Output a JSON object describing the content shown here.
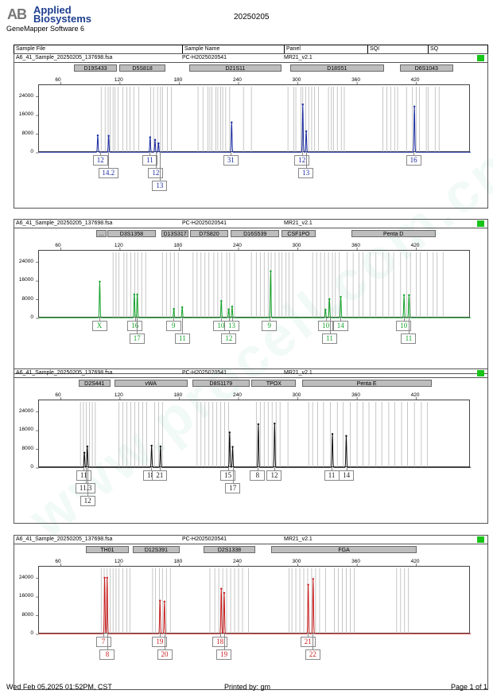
{
  "header": {
    "brand_line1": "Applied",
    "brand_line2": "Biosystems",
    "logo_text": "AB",
    "software": "GeneMapper Software 6",
    "run_date": "20250205"
  },
  "columns": [
    "Sample File",
    "Sample Name",
    "Panel",
    "SQI",
    "SQ"
  ],
  "panels": [
    {
      "file": "A6_41_Sample_20250205_137698.fsa",
      "name": "PC-H2025020541",
      "panel": "MR21_v2.1",
      "color": "#1a2aa0",
      "xticks": [
        60,
        120,
        180,
        240,
        300,
        360,
        420
      ],
      "yticks": [
        0,
        8000,
        16000,
        24000
      ],
      "markers": [
        {
          "label": "D19S433",
          "from": 74,
          "to": 118
        },
        {
          "label": "D5S818",
          "from": 120,
          "to": 167
        },
        {
          "label": "D21S11",
          "from": 191,
          "to": 284
        },
        {
          "label": "D18S51",
          "from": 293,
          "to": 388
        },
        {
          "label": "D6S1043",
          "from": 404,
          "to": 458
        }
      ],
      "ladder": [
        101,
        105,
        108,
        110,
        113,
        115,
        118,
        123,
        127,
        130,
        134,
        139,
        151,
        154,
        158,
        161,
        163,
        168,
        172,
        199,
        204,
        209,
        211,
        213,
        217,
        219,
        222,
        224,
        227,
        231,
        245,
        253,
        290,
        296,
        298,
        303,
        305,
        308,
        311,
        314,
        317,
        321,
        331,
        334,
        336,
        340,
        344,
        347,
        386,
        390,
        394,
        398,
        401,
        410,
        416,
        420,
        423,
        430,
        432,
        439,
        443
      ],
      "peaks": [
        {
          "x": 97.5,
          "h": 7200
        },
        {
          "x": 108.5,
          "h": 7000
        },
        {
          "x": 150.5,
          "h": 6400
        },
        {
          "x": 155.5,
          "h": 5300
        },
        {
          "x": 159,
          "h": 3800
        },
        {
          "x": 233,
          "h": 12800
        },
        {
          "x": 305,
          "h": 20500
        },
        {
          "x": 308.5,
          "h": 9000
        },
        {
          "x": 418,
          "h": 19600
        }
      ],
      "alleles": [
        {
          "label": "12",
          "x": 101,
          "row": 0
        },
        {
          "label": "14.2",
          "x": 109,
          "row": 1
        },
        {
          "label": "11",
          "x": 151,
          "row": 0
        },
        {
          "label": "12",
          "x": 157,
          "row": 1
        },
        {
          "label": "13",
          "x": 161,
          "row": 2
        },
        {
          "label": "31",
          "x": 233,
          "row": 0
        },
        {
          "label": "12",
          "x": 305,
          "row": 0
        },
        {
          "label": "13",
          "x": 309,
          "row": 1
        },
        {
          "label": "16",
          "x": 418,
          "row": 0
        }
      ]
    },
    {
      "file": "A6_41_Sample_20250205_137698.fsa",
      "name": "PC-H2025020541",
      "panel": "MR21_v2.1",
      "color": "#15a22b",
      "xticks": [
        60,
        120,
        180,
        240,
        300,
        360,
        420
      ],
      "yticks": [
        0,
        8000,
        16000,
        24000
      ],
      "markers": [
        {
          "label": "...",
          "from": 97,
          "to": 107
        },
        {
          "label": "D3S1358",
          "from": 108,
          "to": 157
        },
        {
          "label": "D13S317",
          "from": 163,
          "to": 190
        },
        {
          "label": "D7S820",
          "from": 192,
          "to": 230
        },
        {
          "label": "D16S539",
          "from": 233,
          "to": 282
        },
        {
          "label": "CSF1PO",
          "from": 284,
          "to": 319
        },
        {
          "label": "Penta D",
          "from": 355,
          "to": 440
        }
      ],
      "ladder": [
        113,
        116,
        119,
        124,
        127,
        131,
        135,
        138,
        142,
        146,
        163,
        167,
        171,
        175,
        179,
        194,
        198,
        202,
        206,
        210,
        215,
        219,
        223,
        228,
        231,
        236,
        253,
        258,
        262,
        266,
        270,
        273,
        277,
        281,
        284,
        288,
        291,
        295,
        315,
        319,
        323,
        327,
        331,
        335,
        338,
        342,
        350,
        356,
        362,
        366,
        373,
        379,
        386,
        392,
        397,
        404,
        410,
        414,
        420,
        424,
        431,
        437,
        441,
        447
      ],
      "peaks": [
        {
          "x": 99.5,
          "h": 15500
        },
        {
          "x": 134.5,
          "h": 10000
        },
        {
          "x": 137.5,
          "h": 10000
        },
        {
          "x": 174.5,
          "h": 3800
        },
        {
          "x": 183,
          "h": 4500
        },
        {
          "x": 222.5,
          "h": 7200
        },
        {
          "x": 230,
          "h": 3600
        },
        {
          "x": 233.5,
          "h": 4800
        },
        {
          "x": 272.5,
          "h": 20000
        },
        {
          "x": 328,
          "h": 3500
        },
        {
          "x": 332,
          "h": 8000
        },
        {
          "x": 343.5,
          "h": 9000
        },
        {
          "x": 407.5,
          "h": 9700
        },
        {
          "x": 412.5,
          "h": 9700
        }
      ],
      "alleles": [
        {
          "label": "X",
          "x": 100,
          "row": 0
        },
        {
          "label": "16",
          "x": 136,
          "row": 0
        },
        {
          "label": "17",
          "x": 138,
          "row": 1
        },
        {
          "label": "9",
          "x": 175,
          "row": 0
        },
        {
          "label": "11",
          "x": 184,
          "row": 1
        },
        {
          "label": "10",
          "x": 223,
          "row": 0
        },
        {
          "label": "12",
          "x": 231,
          "row": 1
        },
        {
          "label": "13",
          "x": 234,
          "row": 0
        },
        {
          "label": "9",
          "x": 272,
          "row": 0
        },
        {
          "label": "10",
          "x": 329,
          "row": 0
        },
        {
          "label": "11",
          "x": 333,
          "row": 1
        },
        {
          "label": "14",
          "x": 344,
          "row": 0
        },
        {
          "label": "10",
          "x": 408,
          "row": 0
        },
        {
          "label": "11",
          "x": 413,
          "row": 1
        }
      ]
    },
    {
      "file": "A6_41_Sample_20250205_137698.fsa",
      "name": "PC-H2025020541",
      "panel": "MR21_v2.1",
      "color": "#111111",
      "xticks": [
        60,
        120,
        180,
        240,
        300,
        360,
        420
      ],
      "yticks": [
        0,
        8000,
        16000,
        24000
      ],
      "markers": [
        {
          "label": "D2S441",
          "from": 79,
          "to": 111
        },
        {
          "label": "vWA",
          "from": 115,
          "to": 189
        },
        {
          "label": "D8S1179",
          "from": 194,
          "to": 252
        },
        {
          "label": "TPOX",
          "from": 254,
          "to": 299
        },
        {
          "label": "Penta E",
          "from": 305,
          "to": 436
        }
      ],
      "ladder": [
        80,
        83,
        86,
        89,
        92,
        95,
        119,
        123,
        127,
        131,
        135,
        139,
        143,
        147,
        155,
        159,
        163,
        198,
        202,
        206,
        210,
        214,
        218,
        222,
        226,
        230,
        258,
        262,
        266,
        270,
        274,
        278,
        282,
        290,
        311,
        315,
        320,
        326,
        333,
        340,
        346,
        353,
        360,
        366,
        372,
        379,
        385,
        392,
        398,
        405,
        411,
        418,
        425,
        431
      ],
      "peaks": [
        {
          "x": 84,
          "h": 6300
        },
        {
          "x": 87,
          "h": 9000
        },
        {
          "x": 152,
          "h": 9300
        },
        {
          "x": 161,
          "h": 9000
        },
        {
          "x": 231,
          "h": 15000
        },
        {
          "x": 234,
          "h": 8800
        },
        {
          "x": 260,
          "h": 18500
        },
        {
          "x": 276.5,
          "h": 18800
        },
        {
          "x": 335,
          "h": 14300
        },
        {
          "x": 349,
          "h": 13500
        }
      ],
      "alleles": [
        {
          "label": "11",
          "x": 84,
          "row": 0
        },
        {
          "label": "11.3",
          "x": 86,
          "row": 1
        },
        {
          "label": "12",
          "x": 88,
          "row": 2
        },
        {
          "label": "18",
          "x": 152,
          "row": 0
        },
        {
          "label": "21",
          "x": 161,
          "row": 0
        },
        {
          "label": "15",
          "x": 230,
          "row": 0
        },
        {
          "label": "17",
          "x": 235,
          "row": 1
        },
        {
          "label": "8",
          "x": 260,
          "row": 0
        },
        {
          "label": "12",
          "x": 277,
          "row": 0
        },
        {
          "label": "11",
          "x": 335,
          "row": 0
        },
        {
          "label": "14",
          "x": 350,
          "row": 0
        }
      ]
    },
    {
      "file": "A6_41_Sample_20250205_137698.fsa",
      "name": "PC-H2025020541",
      "panel": "MR21_v2.1",
      "color": "#c81e1e",
      "xticks": [
        60,
        120,
        180,
        240,
        300,
        360,
        420
      ],
      "yticks": [
        0,
        8000,
        16000,
        24000
      ],
      "markers": [
        {
          "label": "TH01",
          "from": 86,
          "to": 130
        },
        {
          "label": "D12S391",
          "from": 134,
          "to": 181
        },
        {
          "label": "D2S1338",
          "from": 205,
          "to": 258
        },
        {
          "label": "FGA",
          "from": 274,
          "to": 421
        }
      ],
      "ladder": [
        101,
        104,
        107,
        110,
        113,
        116,
        119,
        123,
        127,
        130,
        153,
        156,
        160,
        163,
        167,
        171,
        211,
        216,
        220,
        224,
        228,
        232,
        236,
        240,
        244,
        250,
        291,
        294,
        298,
        302,
        306,
        310,
        314,
        318,
        322,
        328,
        337,
        341,
        345,
        349,
        353,
        357,
        400,
        404,
        408,
        412
      ],
      "peaks": [
        {
          "x": 104.5,
          "h": 24000
        },
        {
          "x": 107,
          "h": 24000
        },
        {
          "x": 160.5,
          "h": 14200
        },
        {
          "x": 165,
          "h": 13800
        },
        {
          "x": 222.5,
          "h": 19300
        },
        {
          "x": 225.5,
          "h": 17500
        },
        {
          "x": 310.5,
          "h": 21000
        },
        {
          "x": 315.5,
          "h": 23500
        }
      ],
      "alleles": [
        {
          "label": "7",
          "x": 104,
          "row": 0
        },
        {
          "label": "8",
          "x": 108,
          "row": 1
        },
        {
          "label": "19",
          "x": 161,
          "row": 0
        },
        {
          "label": "20",
          "x": 166,
          "row": 1
        },
        {
          "label": "18",
          "x": 222,
          "row": 0
        },
        {
          "label": "19",
          "x": 226,
          "row": 1
        },
        {
          "label": "21",
          "x": 311,
          "row": 0
        },
        {
          "label": "22",
          "x": 316,
          "row": 1
        }
      ]
    }
  ],
  "footer": {
    "printed_on": "Wed Feb 05,2025 01:52PM, CST",
    "printed_by": "Printed by: gm",
    "page": "Page 1 of 1"
  }
}
